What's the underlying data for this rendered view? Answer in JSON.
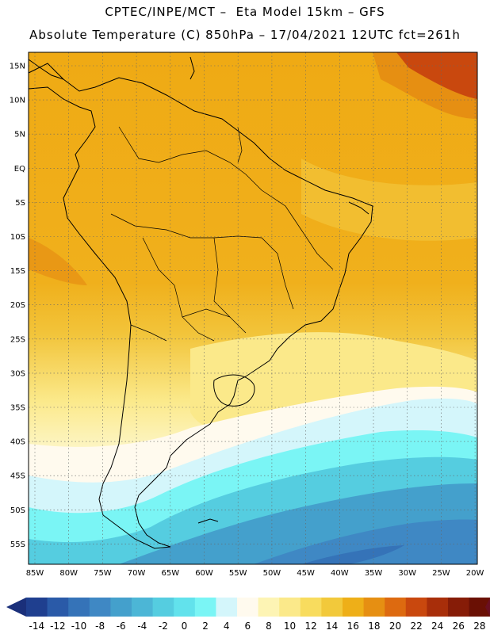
{
  "header": {
    "line1": "CPTEC/INPE/MCT –  Eta Model 15km – GFS",
    "line2": "Absolute Temperature (C) 850hPa – 17/04/2021 12UTC fct=261h"
  },
  "map": {
    "lat_labels": [
      "15N",
      "10N",
      "5N",
      "EQ",
      "5S",
      "10S",
      "15S",
      "20S",
      "25S",
      "30S",
      "35S",
      "40S",
      "45S",
      "50S",
      "55S"
    ],
    "lon_labels": [
      "85W",
      "80W",
      "75W",
      "70W",
      "65W",
      "60W",
      "55W",
      "50W",
      "45W",
      "40W",
      "35W",
      "30W",
      "25W",
      "20W"
    ]
  },
  "colorbar": {
    "labels": [
      "-14",
      "-12",
      "-10",
      "-8",
      "-6",
      "-4",
      "-2",
      "0",
      "2",
      "4",
      "6",
      "8",
      "10",
      "12",
      "14",
      "16",
      "18",
      "20",
      "22",
      "24",
      "26",
      "28"
    ],
    "colors": [
      "#1f3f8f",
      "#2a5aa8",
      "#3573b8",
      "#3f88c4",
      "#44a0cc",
      "#4cb6d6",
      "#55cde0",
      "#62e2ec",
      "#7af5f5",
      "#d4f6fb",
      "#fffaee",
      "#fdf4b4",
      "#fbe98a",
      "#f8dc5e",
      "#f2c93b",
      "#eeaf18",
      "#e68f12",
      "#dd6a10",
      "#c9480e",
      "#a82e0a",
      "#861c07",
      "#6a1004"
    ],
    "end_low": "#1a2f7a",
    "end_high": "#6a0f20"
  }
}
